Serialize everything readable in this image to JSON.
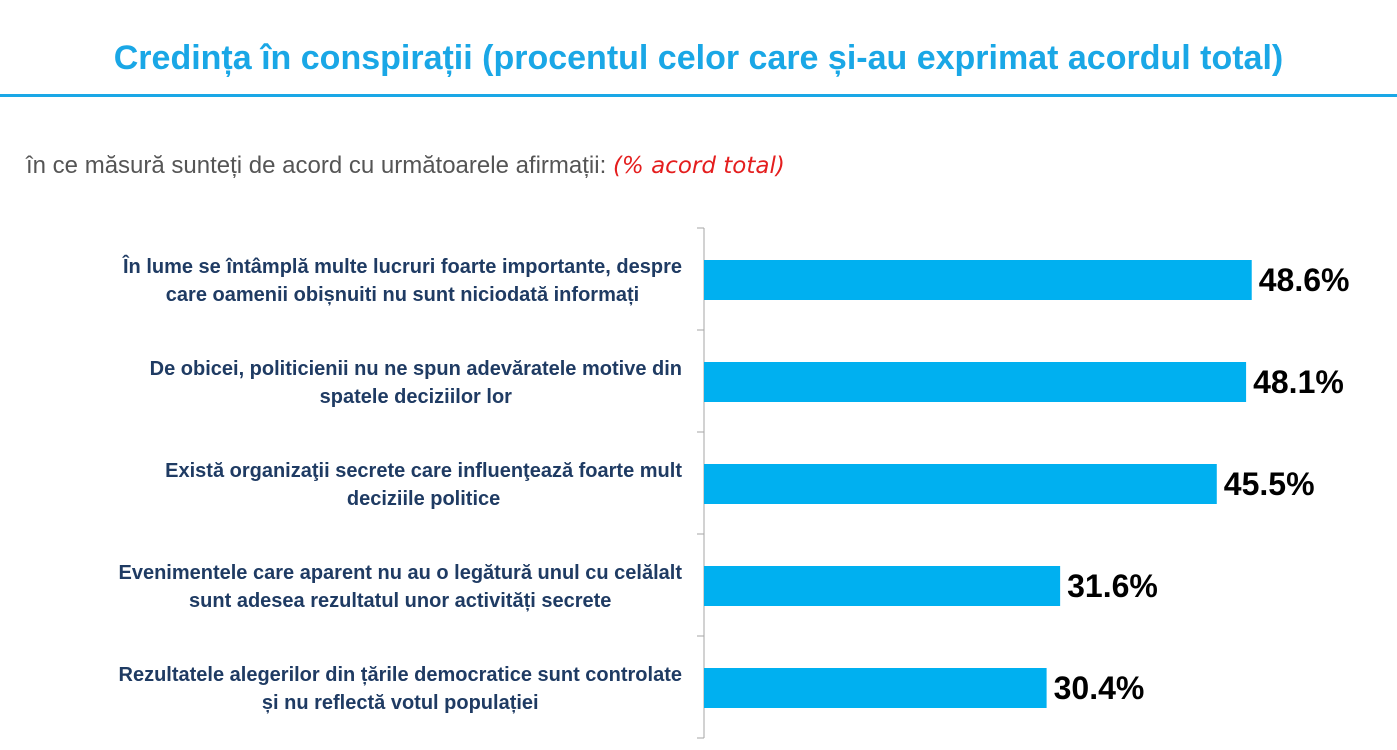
{
  "title": "Credința în conspirații (procentul celor care și-au exprimat acordul total)",
  "subtitle": {
    "question": "în ce măsură sunteți de acord cu următoarele afirmații:",
    "note": "(% acord total)"
  },
  "colors": {
    "title": "#1aa7e6",
    "bar": "#00b0f0",
    "category_text": "#1f3b63",
    "note": "#e41e1e"
  },
  "chart_data": {
    "type": "bar",
    "orientation": "horizontal",
    "categories": [
      [
        "În lume se întâmplă multe lucruri foarte importante, despre",
        "care oamenii obișnuiti nu sunt niciodată informați"
      ],
      [
        "De obicei, politicienii nu ne spun adevăratele motive din",
        "spatele deciziilor lor"
      ],
      [
        "Există organizaţii secrete care influenţează foarte mult",
        "deciziile politice"
      ],
      [
        "Evenimentele care aparent nu au o legătură unul cu celălalt",
        "sunt adesea rezultatul unor activități secrete"
      ],
      [
        "Rezultatele alegerilor din țările democratice sunt controlate",
        "și nu reflectă votul populației"
      ]
    ],
    "values": [
      48.6,
      48.1,
      45.5,
      31.6,
      30.4
    ],
    "value_labels": [
      "48.6%",
      "48.1%",
      "45.5%",
      "31.6%",
      "30.4%"
    ],
    "unit": "%",
    "grid": false,
    "legend": "none"
  }
}
